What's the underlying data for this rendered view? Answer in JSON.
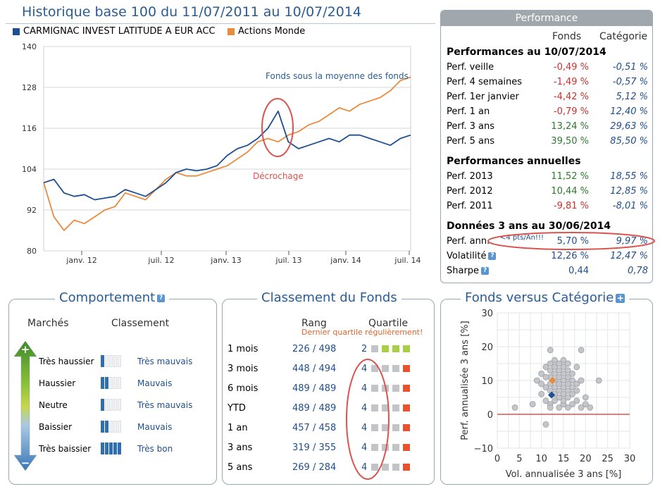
{
  "history": {
    "title": "Historique base 100 du 11/07/2011 au 10/07/2014",
    "legend": [
      {
        "name": "CARMIGNAC INVEST LATITUDE A EUR ACC",
        "color": "#1d4f91"
      },
      {
        "name": "Actions Monde",
        "color": "#ea8a3c"
      }
    ],
    "annotations": {
      "below_average": "Fonds sous la moyenne des fonds",
      "drop": "Décrochage"
    }
  },
  "chart_data": [
    {
      "type": "line",
      "title": "Historique base 100 du 11/07/2011 au 10/07/2014",
      "ylim": [
        80,
        140
      ],
      "yticks": [
        "140",
        "128",
        "116",
        "104",
        "92",
        "80"
      ],
      "xticks": [
        "janv. 12",
        "juil. 12",
        "janv. 13",
        "juil. 13",
        "janv. 14",
        "juil. 14"
      ],
      "grid": true,
      "legend_position": "top-left",
      "x": [
        "2011-07",
        "2011-08",
        "2011-09",
        "2011-10",
        "2011-11",
        "2011-12",
        "2012-01",
        "2012-02",
        "2012-03",
        "2012-04",
        "2012-05",
        "2012-06",
        "2012-07",
        "2012-08",
        "2012-09",
        "2012-10",
        "2012-11",
        "2012-12",
        "2013-01",
        "2013-02",
        "2013-03",
        "2013-04",
        "2013-05",
        "2013-06",
        "2013-07",
        "2013-08",
        "2013-09",
        "2013-10",
        "2013-11",
        "2013-12",
        "2014-01",
        "2014-02",
        "2014-03",
        "2014-04",
        "2014-05",
        "2014-06",
        "2014-07"
      ],
      "series": [
        {
          "name": "CARMIGNAC INVEST LATITUDE A EUR ACC",
          "color": "#1d4f91",
          "values": [
            100,
            101,
            97,
            96,
            96.5,
            95,
            95.5,
            96,
            98,
            97,
            96,
            98,
            100,
            103,
            104,
            103.5,
            104,
            105,
            108,
            110,
            111,
            113,
            116,
            121,
            112,
            110,
            111,
            112,
            113,
            112,
            114,
            114,
            113,
            112,
            111,
            113,
            114
          ]
        },
        {
          "name": "Actions Monde",
          "color": "#ea8a3c",
          "values": [
            100,
            90,
            86,
            89,
            88,
            90,
            92,
            93,
            97,
            96,
            95,
            98,
            101,
            103,
            102,
            102,
            103,
            104,
            105,
            107,
            109,
            112,
            113,
            112,
            114,
            115,
            117,
            118,
            120,
            122,
            121,
            123,
            124,
            125,
            127,
            130,
            131
          ]
        }
      ]
    },
    {
      "type": "scatter",
      "title": "Fonds versus Catégorie",
      "xlabel": "Vol. annualisée 3 ans [%]",
      "ylabel": "Perf. annualisée 3 ans [%]",
      "xlim": [
        0,
        30
      ],
      "ylim": [
        -10,
        30
      ],
      "xticks": [
        "0",
        "5",
        "10",
        "15",
        "20",
        "25",
        "30"
      ],
      "yticks": [
        "30",
        "20",
        "10",
        "0",
        "−10"
      ],
      "grid": true,
      "fund_point": {
        "x": 12.3,
        "y": 5.7,
        "color": "#1d4f91"
      },
      "category_point": {
        "x": 12.5,
        "y": 10.0,
        "color": "#ea8a3c"
      },
      "peer_points": [
        [
          4,
          2
        ],
        [
          8,
          3
        ],
        [
          9,
          10
        ],
        [
          10,
          6
        ],
        [
          10,
          12
        ],
        [
          11,
          8
        ],
        [
          11,
          14
        ],
        [
          11,
          4
        ],
        [
          11,
          -3
        ],
        [
          12,
          9
        ],
        [
          12,
          11
        ],
        [
          12,
          13
        ],
        [
          12,
          7
        ],
        [
          12,
          19
        ],
        [
          12,
          3
        ],
        [
          13,
          10
        ],
        [
          13,
          12
        ],
        [
          13,
          8
        ],
        [
          13,
          14
        ],
        [
          13,
          6
        ],
        [
          13,
          16
        ],
        [
          14,
          9
        ],
        [
          14,
          11
        ],
        [
          14,
          7
        ],
        [
          14,
          13
        ],
        [
          14,
          5
        ],
        [
          14,
          15
        ],
        [
          15,
          10
        ],
        [
          15,
          8
        ],
        [
          15,
          12
        ],
        [
          15,
          6
        ],
        [
          15,
          14
        ],
        [
          15,
          3
        ],
        [
          15,
          16
        ],
        [
          16,
          9
        ],
        [
          16,
          11
        ],
        [
          16,
          7
        ],
        [
          16,
          13
        ],
        [
          16,
          5
        ],
        [
          16,
          2
        ],
        [
          17,
          10
        ],
        [
          17,
          8
        ],
        [
          17,
          12
        ],
        [
          17,
          6
        ],
        [
          17,
          3
        ],
        [
          18,
          9
        ],
        [
          18,
          7
        ],
        [
          18,
          14
        ],
        [
          18,
          4
        ],
        [
          19,
          19
        ],
        [
          19,
          10
        ],
        [
          19,
          2
        ],
        [
          20,
          3
        ],
        [
          20,
          5
        ],
        [
          21,
          2
        ],
        [
          23,
          10
        ],
        [
          12,
          2
        ],
        [
          14,
          2
        ],
        [
          13,
          4
        ],
        [
          15,
          4
        ],
        [
          12,
          15
        ],
        [
          16,
          15
        ],
        [
          10,
          9
        ],
        [
          11,
          11
        ]
      ]
    }
  ],
  "performance": {
    "header": "Performance",
    "col_fund": "Fonds",
    "col_cat": "Catégorie",
    "sections": [
      {
        "title": "Performances au 10/07/2014",
        "rows": [
          {
            "label": "Perf. veille",
            "fund": "-0,49 %",
            "cat": "-0,51 %"
          },
          {
            "label": "Perf. 4 semaines",
            "fund": "-1,49 %",
            "cat": "-0,57 %"
          },
          {
            "label": "Perf. 1er janvier",
            "fund": "-4,42 %",
            "cat": "5,12 %"
          },
          {
            "label": "Perf. 1 an",
            "fund": "-0,79 %",
            "cat": "12,40 %"
          },
          {
            "label": "Perf. 3 ans",
            "fund": "13,24 %",
            "cat": "29,63 %"
          },
          {
            "label": "Perf. 5 ans",
            "fund": "39,50 %",
            "cat": "85,50 %"
          }
        ]
      },
      {
        "title": "Performances annuelles",
        "rows": [
          {
            "label": "Perf. 2013",
            "fund": "11,52 %",
            "cat": "18,55 %"
          },
          {
            "label": "Perf. 2012",
            "fund": "10,44 %",
            "cat": "12,85 %"
          },
          {
            "label": "Perf. 2011",
            "fund": "-9,81 %",
            "cat": "-8,01 %"
          }
        ]
      },
      {
        "title": "Données 3 ans au 30/06/2014",
        "rows": [
          {
            "label": "Perf. ann.",
            "fund": "5,70 %",
            "cat": "9,97 %"
          },
          {
            "label": "Volatilité",
            "fund": "12,26 %",
            "cat": "12,47 %"
          },
          {
            "label": "Sharpe",
            "fund": "0,44",
            "cat": "0,78"
          }
        ]
      }
    ],
    "note": "<4 pts/An!!!"
  },
  "behavior": {
    "title": "Comportement",
    "col_markets": "Marchés",
    "col_rank": "Classement",
    "rows": [
      {
        "label": "Très haussier",
        "level": 1,
        "rating": "Très mauvais"
      },
      {
        "label": "Haussier",
        "level": 2,
        "rating": "Mauvais"
      },
      {
        "label": "Neutre",
        "level": 1,
        "rating": "Très mauvais"
      },
      {
        "label": "Baissier",
        "level": 2,
        "rating": "Mauvais"
      },
      {
        "label": "Très baissier",
        "level": 5,
        "rating": "Très bon"
      }
    ]
  },
  "ranking": {
    "title": "Classement du Fonds",
    "col_rank": "Rang",
    "col_quartile": "Quartile",
    "note": "Dernier quartile régulièrement!",
    "rows": [
      {
        "label": "1 mois",
        "rank": "226 / 498",
        "quartile": "2"
      },
      {
        "label": "3 mois",
        "rank": "448 / 494",
        "quartile": "4"
      },
      {
        "label": "6 mois",
        "rank": "489 / 489",
        "quartile": "4"
      },
      {
        "label": "YTD",
        "rank": "489 / 489",
        "quartile": "4"
      },
      {
        "label": "1 an",
        "rank": "457 / 458",
        "quartile": "4"
      },
      {
        "label": "3 ans",
        "rank": "319 / 355",
        "quartile": "4"
      },
      {
        "label": "5 ans",
        "rank": "269 / 284",
        "quartile": "4"
      }
    ]
  },
  "scatter_panel": {
    "title": "Fonds versus Catégorie"
  }
}
